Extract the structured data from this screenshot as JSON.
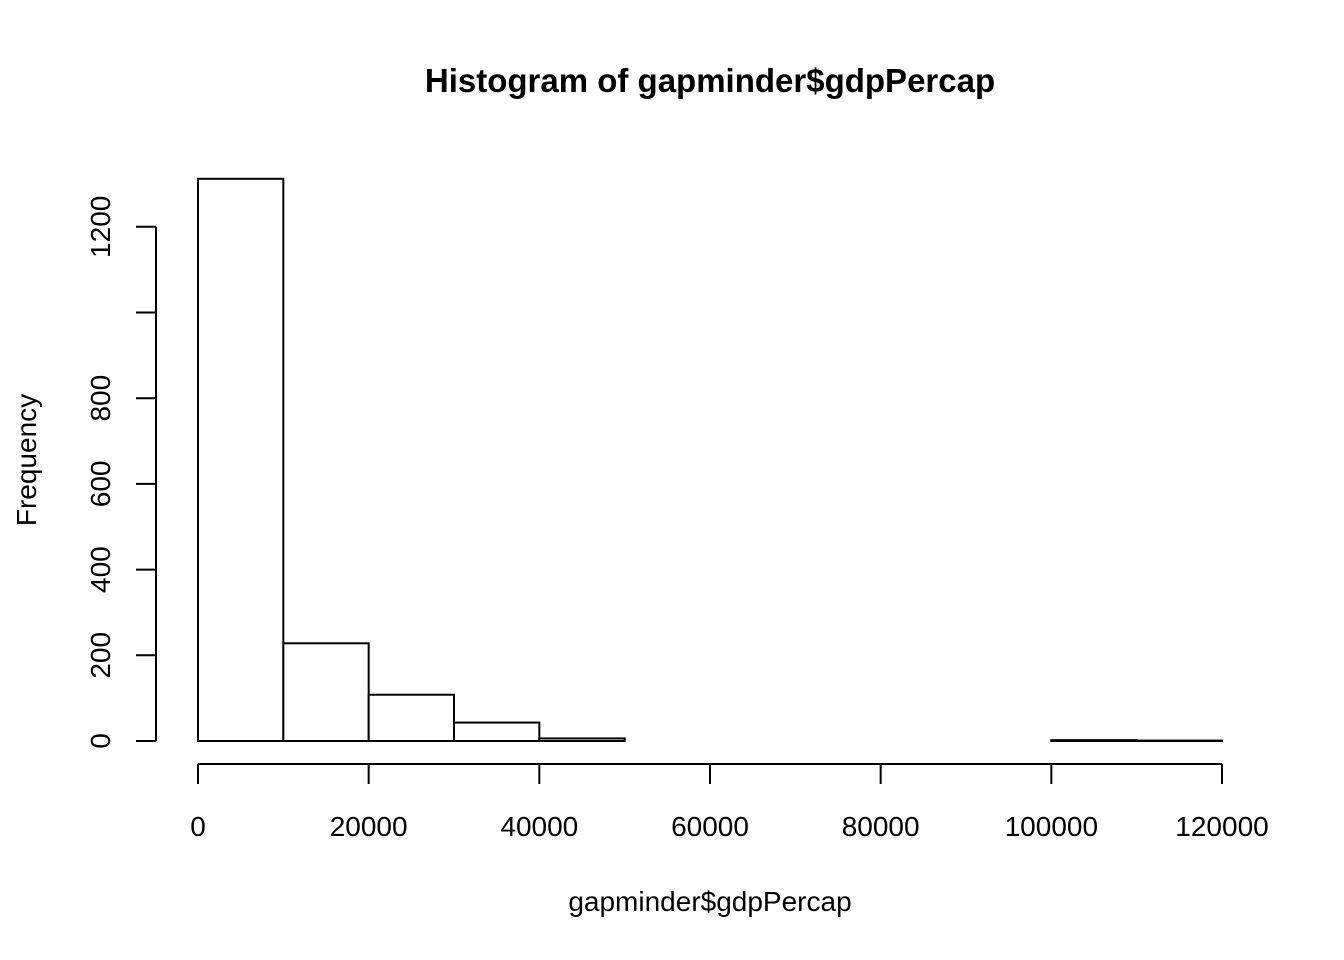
{
  "chart_data": {
    "type": "bar",
    "title": "Histogram of gapminder$gdpPercap",
    "xlabel": "gapminder$gdpPercap",
    "ylabel": "Frequency",
    "bins": [
      {
        "start": 0,
        "end": 10000,
        "count": 1312
      },
      {
        "start": 10000,
        "end": 20000,
        "count": 228
      },
      {
        "start": 20000,
        "end": 30000,
        "count": 108
      },
      {
        "start": 30000,
        "end": 40000,
        "count": 43
      },
      {
        "start": 40000,
        "end": 50000,
        "count": 6
      },
      {
        "start": 50000,
        "end": 60000,
        "count": 0
      },
      {
        "start": 60000,
        "end": 70000,
        "count": 0
      },
      {
        "start": 70000,
        "end": 80000,
        "count": 0
      },
      {
        "start": 80000,
        "end": 90000,
        "count": 0
      },
      {
        "start": 90000,
        "end": 100000,
        "count": 0
      },
      {
        "start": 100000,
        "end": 110000,
        "count": 2
      },
      {
        "start": 110000,
        "end": 120000,
        "count": 1
      }
    ],
    "xlim": [
      0,
      120000
    ],
    "ylim": [
      0,
      1312
    ],
    "x_ticks": [
      0,
      20000,
      40000,
      60000,
      80000,
      100000,
      120000
    ],
    "x_tick_labels": [
      "0",
      "20000",
      "40000",
      "60000",
      "80000",
      "100000",
      "120000"
    ],
    "y_ticks": [
      0,
      200,
      400,
      600,
      800,
      1000,
      1200
    ],
    "y_tick_labels": [
      "0",
      "200",
      "400",
      "600",
      "800",
      "",
      "1200"
    ],
    "grid": false,
    "colors": {
      "bar_fill": "#ffffff",
      "bar_stroke": "#000000"
    }
  }
}
